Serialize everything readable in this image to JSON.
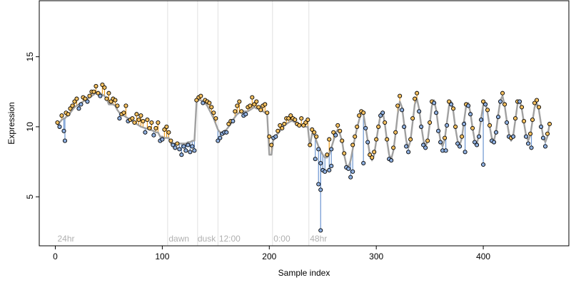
{
  "chart_data": {
    "type": "scatter",
    "title": "",
    "xlabel": "Sample index",
    "ylabel": "Expression",
    "xlim": [
      -15,
      480
    ],
    "ylim": [
      1.5,
      19
    ],
    "x_ticks": [
      0,
      100,
      200,
      300,
      400
    ],
    "y_ticks": [
      5,
      10,
      15
    ],
    "grid": false,
    "colors": {
      "fit_line": "#a0a0a0",
      "residual_above": "#f0a020",
      "residual_below": "#6b95d0",
      "point_above": "#f5c060",
      "point_below": "#8fb0e0",
      "point_edge": "#000000",
      "annotation_text": "#b0b0b0",
      "phase_line": "#e0e0e0"
    },
    "annotations": [
      {
        "x": 2,
        "label": "24hr"
      },
      {
        "x": 106,
        "label": "dawn"
      },
      {
        "x": 133,
        "label": "dusk"
      },
      {
        "x": 153,
        "label": "12:00"
      },
      {
        "x": 204,
        "label": "0:00"
      },
      {
        "x": 238,
        "label": "48hr"
      }
    ],
    "phase_lines": [
      105,
      133,
      152,
      203,
      237
    ],
    "x": [
      2,
      4,
      6,
      8,
      9,
      10,
      12,
      14,
      16,
      18,
      20,
      22,
      24,
      26,
      28,
      30,
      32,
      34,
      36,
      38,
      40,
      42,
      44,
      46,
      48,
      50,
      52,
      54,
      56,
      58,
      60,
      62,
      64,
      66,
      68,
      70,
      72,
      74,
      76,
      78,
      80,
      82,
      84,
      86,
      88,
      90,
      92,
      94,
      96,
      98,
      100,
      102,
      104,
      106,
      108,
      110,
      112,
      114,
      116,
      118,
      120,
      122,
      124,
      126,
      128,
      130,
      132,
      134,
      136,
      138,
      140,
      142,
      144,
      146,
      148,
      150,
      152,
      154,
      156,
      158,
      160,
      162,
      164,
      166,
      168,
      170,
      172,
      174,
      176,
      178,
      180,
      182,
      184,
      186,
      188,
      190,
      192,
      194,
      196,
      198,
      200,
      202,
      204,
      206,
      208,
      210,
      212,
      214,
      216,
      218,
      220,
      222,
      224,
      226,
      228,
      230,
      232,
      234,
      236,
      238,
      240,
      242,
      244,
      246,
      248,
      250,
      252,
      254,
      256,
      258,
      260,
      262,
      264,
      266,
      268,
      270,
      272,
      274,
      276,
      278,
      280,
      282,
      284,
      286,
      288,
      290,
      292,
      294,
      296,
      298,
      300,
      302,
      304,
      306,
      308,
      310,
      312,
      314,
      316,
      318,
      320,
      322,
      324,
      326,
      328,
      330,
      332,
      334,
      336,
      338,
      340,
      342,
      344,
      346,
      348,
      350,
      352,
      354,
      356,
      358,
      360,
      362,
      364,
      366,
      368,
      370,
      372,
      374,
      376,
      378,
      380,
      382,
      384,
      386,
      388,
      390,
      392,
      394,
      396,
      398,
      400,
      402,
      404,
      406,
      408,
      410,
      412,
      414,
      416,
      418,
      420,
      422,
      424,
      426,
      428,
      430,
      432,
      434,
      436,
      438,
      440,
      442,
      444,
      446,
      448,
      450,
      452,
      454,
      456,
      458,
      460,
      462
    ],
    "fit": [
      10.1,
      10.3,
      10.5,
      10.6,
      10.6,
      10.7,
      10.8,
      11.0,
      11.2,
      11.4,
      11.5,
      11.6,
      11.7,
      11.8,
      11.9,
      12.0,
      12.1,
      12.2,
      12.3,
      12.4,
      12.4,
      12.4,
      12.3,
      12.2,
      12.0,
      11.6,
      11.6,
      11.6,
      11.5,
      11.2,
      11.0,
      10.9,
      10.8,
      10.7,
      10.6,
      10.5,
      10.4,
      10.3,
      10.2,
      10.1,
      10.0,
      9.95,
      9.9,
      9.85,
      9.8,
      9.75,
      9.7,
      9.6,
      9.6,
      9.3,
      9.3,
      9.2,
      9.2,
      9.2,
      8.8,
      8.8,
      8.8,
      8.8,
      8.8,
      8.8,
      8.8,
      8.8,
      8.9,
      8.9,
      9.0,
      9.0,
      11.8,
      11.9,
      11.9,
      11.8,
      11.7,
      11.5,
      11.2,
      10.9,
      10.6,
      10.2,
      9.8,
      9.6,
      9.6,
      9.7,
      9.8,
      10.0,
      10.2,
      10.5,
      10.7,
      10.9,
      11.0,
      11.1,
      11.1,
      11.1,
      11.1,
      11.2,
      11.3,
      11.4,
      11.3,
      11.3,
      11.2,
      11.1,
      11.0,
      10.9,
      8.0,
      8.0,
      9.3,
      9.4,
      9.5,
      9.7,
      9.9,
      10.1,
      10.2,
      10.3,
      10.4,
      10.4,
      10.3,
      10.2,
      10.1,
      10.1,
      10.1,
      10.0,
      10.0,
      8.6,
      9.5,
      9.4,
      9.0,
      8.6,
      8.3,
      8.0,
      7.8,
      7.8,
      8.0,
      8.5,
      9.0,
      9.5,
      9.8,
      9.5,
      9.0,
      8.0,
      7.3,
      7.1,
      7.6,
      8.4,
      9.2,
      9.9,
      10.5,
      11.0,
      10.9,
      10.0,
      9.0,
      8.0,
      7.6,
      8.0,
      9.0,
      10.0,
      10.9,
      11.1,
      10.2,
      9.0,
      8.0,
      7.7,
      8.3,
      9.5,
      10.9,
      11.8,
      11.4,
      10.2,
      9.0,
      8.5,
      9.0,
      10.3,
      11.6,
      12.0,
      11.3,
      10.1,
      9.1,
      8.6,
      9.0,
      10.2,
      11.5,
      11.9,
      11.2,
      10.0,
      9.0,
      8.6,
      9.1,
      10.3,
      11.5,
      11.8,
      11.1,
      9.9,
      9.0,
      8.7,
      9.2,
      10.4,
      11.5,
      11.7,
      11.0,
      9.9,
      9.0,
      8.8,
      9.4,
      10.6,
      11.6,
      11.7,
      11.0,
      10.0,
      9.2,
      9.0,
      9.7,
      10.9,
      11.9,
      12.2,
      11.5,
      10.4,
      9.5,
      9.0,
      9.4,
      10.5,
      11.6,
      11.9,
      11.3,
      10.3,
      9.4,
      9.0,
      9.4,
      10.4,
      11.4,
      11.7,
      11.2,
      10.2,
      9.3,
      8.9,
      9.3,
      10.2
    ],
    "values": [
      10.3,
      10.0,
      10.8,
      9.7,
      9.0,
      11.0,
      10.9,
      11.3,
      11.5,
      11.8,
      12.0,
      11.3,
      11.6,
      12.1,
      12.0,
      11.8,
      12.2,
      12.5,
      12.5,
      12.9,
      12.4,
      12.2,
      13.0,
      12.8,
      12.0,
      12.4,
      11.8,
      12.0,
      11.9,
      11.5,
      10.6,
      10.9,
      11.0,
      11.5,
      10.4,
      10.5,
      10.6,
      10.3,
      10.9,
      10.5,
      10.8,
      10.4,
      9.6,
      10.5,
      9.9,
      10.3,
      9.4,
      9.9,
      10.3,
      9.0,
      9.1,
      9.8,
      10.0,
      9.6,
      9.0,
      8.7,
      8.5,
      8.8,
      8.4,
      8.0,
      8.6,
      8.3,
      8.7,
      8.2,
      8.6,
      8.3,
      11.9,
      12.1,
      12.2,
      11.7,
      11.9,
      11.8,
      11.7,
      11.4,
      11.0,
      10.6,
      9.0,
      9.2,
      9.5,
      9.6,
      9.6,
      10.2,
      10.4,
      10.4,
      11.1,
      11.5,
      11.8,
      11.1,
      10.8,
      10.9,
      11.4,
      11.5,
      12.1,
      11.6,
      11.8,
      11.4,
      11.2,
      11.5,
      11.6,
      11.0,
      9.3,
      8.7,
      9.2,
      9.3,
      9.7,
      10.1,
      9.9,
      10.2,
      10.6,
      10.6,
      10.8,
      10.6,
      10.5,
      10.2,
      10.1,
      10.6,
      10.1,
      10.3,
      10.5,
      8.7,
      9.8,
      9.6,
      9.3,
      8.4,
      7.4,
      6.9,
      6.8,
      8.0,
      9.1,
      8.4,
      9.6,
      9.4,
      10.1,
      9.7,
      9.0,
      8.1,
      7.1,
      7.0,
      6.4,
      8.7,
      9.3,
      10.0,
      10.8,
      11.1,
      11.0,
      9.9,
      8.9,
      8.0,
      7.8,
      8.2,
      9.1,
      10.0,
      10.8,
      11.0,
      10.3,
      9.1,
      7.7,
      7.6,
      8.5,
      9.6,
      11.5,
      12.2,
      11.2,
      10.0,
      8.6,
      8.2,
      9.1,
      10.6,
      12.0,
      12.4,
      11.1,
      10.0,
      8.7,
      8.5,
      9.0,
      10.3,
      11.8,
      11.7,
      11.0,
      9.7,
      8.9,
      8.3,
      9.2,
      10.1,
      11.8,
      11.6,
      11.3,
      10.0,
      8.8,
      8.6,
      9.3,
      10.2,
      11.6,
      11.5,
      10.9,
      9.9,
      8.9,
      8.7,
      9.3,
      10.5,
      11.8,
      11.6,
      11.2,
      10.1,
      9.0,
      8.9,
      9.6,
      10.7,
      11.8,
      12.4,
      11.6,
      10.3,
      9.3,
      9.2,
      9.3,
      10.6,
      11.8,
      11.8,
      11.4,
      10.4,
      9.3,
      8.8,
      9.5,
      10.5,
      11.7,
      11.9,
      11.4,
      10.0,
      9.2,
      8.6,
      9.5,
      10.2
    ],
    "outliers": [
      {
        "x": 246,
        "value": 5.9
      },
      {
        "x": 248,
        "value": 5.5
      },
      {
        "x": 258,
        "value": 7.2
      },
      {
        "x": 278,
        "value": 6.8
      },
      {
        "x": 288,
        "value": 7.4
      },
      {
        "x": 243,
        "value": 7.7
      },
      {
        "x": 256,
        "value": 6.9
      },
      {
        "x": 365,
        "value": 8.3
      },
      {
        "x": 383,
        "value": 8.2
      },
      {
        "x": 400,
        "value": 7.3
      },
      {
        "x": 445,
        "value": 8.5
      },
      {
        "x": 248,
        "value": 2.6
      }
    ]
  }
}
